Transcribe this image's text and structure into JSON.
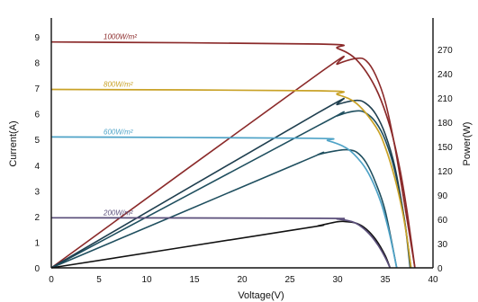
{
  "chart_data": {
    "type": "line",
    "xlabel": "Voltage(V)",
    "ylabel_left": "Current(A)",
    "ylabel_right": "Power(W)",
    "xlim": [
      0,
      40
    ],
    "ylim_left": [
      0,
      10
    ],
    "ylim_right": [
      0,
      300
    ],
    "xticks": [
      0,
      5,
      10,
      15,
      20,
      25,
      30,
      35,
      40
    ],
    "yticks_left": [
      0,
      1,
      2,
      3,
      4,
      5,
      6,
      7,
      8,
      9
    ],
    "yticks_right": [
      0,
      30,
      60,
      90,
      120,
      150,
      180,
      210,
      240,
      270
    ],
    "grid": false,
    "series": [
      {
        "name": "1000W/m²",
        "color": "#8b2a2a",
        "current": {
          "x": [
            0,
            28,
            30,
            32,
            34,
            35.5,
            36.5,
            37.2,
            37.7,
            38.1
          ],
          "y": [
            8.8,
            8.72,
            8.55,
            8.1,
            7.0,
            5.5,
            3.9,
            2.4,
            1.1,
            0
          ]
        },
        "power": {
          "x": [
            0,
            28,
            30,
            32,
            33,
            34,
            35,
            36,
            37,
            38.1
          ],
          "y": [
            0,
            240,
            252,
            259,
            256,
            238,
            205,
            150,
            80,
            0
          ]
        }
      },
      {
        "name": "800W/m²",
        "color": "#c9a227",
        "current": {
          "x": [
            0,
            28,
            30,
            32,
            34,
            35,
            36,
            36.8,
            37.3,
            37.7
          ],
          "y": [
            6.95,
            6.9,
            6.75,
            6.4,
            5.5,
            4.7,
            3.5,
            2.2,
            1.1,
            0
          ]
        },
        "power": {
          "x": [
            0,
            28,
            30,
            32,
            33,
            34,
            35,
            36,
            37,
            37.7
          ],
          "y": [
            0,
            192,
            202,
            207,
            203,
            190,
            165,
            125,
            60,
            0
          ]
        }
      },
      {
        "name": "600W/m²",
        "color": "#4fa3c7",
        "current": {
          "x": [
            0,
            27,
            29,
            31,
            32.5,
            33.5,
            34.5,
            35.2,
            35.7,
            36.2
          ],
          "y": [
            5.1,
            5.05,
            4.95,
            4.65,
            4.1,
            3.5,
            2.6,
            1.7,
            0.9,
            0
          ]
        },
        "power": {
          "x": [
            0,
            26,
            28,
            30,
            31,
            32,
            33,
            34,
            35,
            36.2
          ],
          "y": [
            0,
            130,
            140,
            145,
            146,
            143,
            130,
            105,
            70,
            0
          ]
        }
      },
      {
        "name": "200W/m²",
        "color": "#5a4e7a",
        "current": {
          "x": [
            0,
            28,
            30,
            31.5,
            32.5,
            33.5,
            34.3,
            35,
            35.5
          ],
          "y": [
            1.95,
            1.93,
            1.9,
            1.8,
            1.6,
            1.25,
            0.85,
            0.4,
            0
          ]
        },
        "power": {
          "x": [
            0,
            26,
            28,
            30,
            31,
            32,
            33,
            34,
            35,
            35.5
          ],
          "y": [
            0,
            48,
            52,
            57,
            57,
            55,
            48,
            35,
            15,
            0
          ]
        }
      }
    ],
    "extra_power_curve": {
      "color": "#1f4f5f",
      "x": [
        0,
        28,
        30,
        32,
        33,
        34,
        35,
        36,
        37,
        37.6
      ],
      "y": [
        0,
        176,
        188,
        194,
        191,
        180,
        158,
        120,
        60,
        0
      ]
    }
  }
}
